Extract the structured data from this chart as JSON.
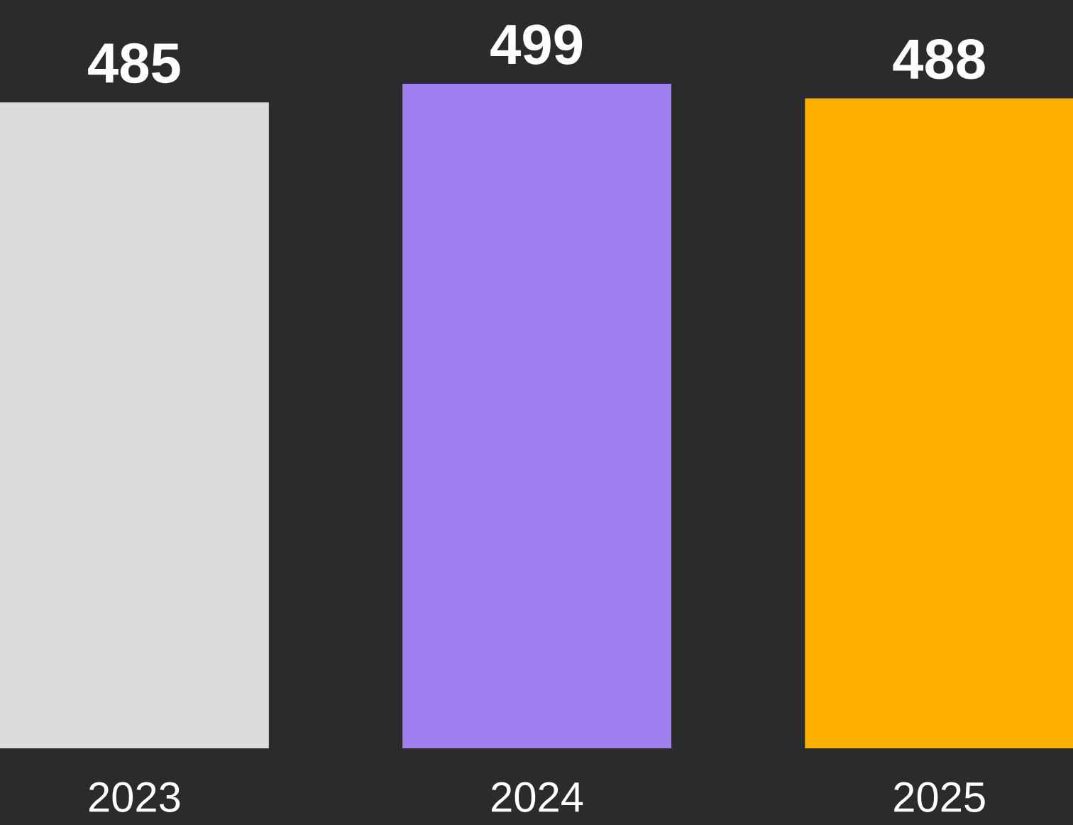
{
  "chart_data": {
    "type": "bar",
    "categories": [
      "2023",
      "2024",
      "2025"
    ],
    "values": [
      485,
      499,
      488
    ],
    "colors": [
      "#dcdcdc",
      "#a080f0",
      "#ffb000"
    ],
    "data_labels": true
  }
}
